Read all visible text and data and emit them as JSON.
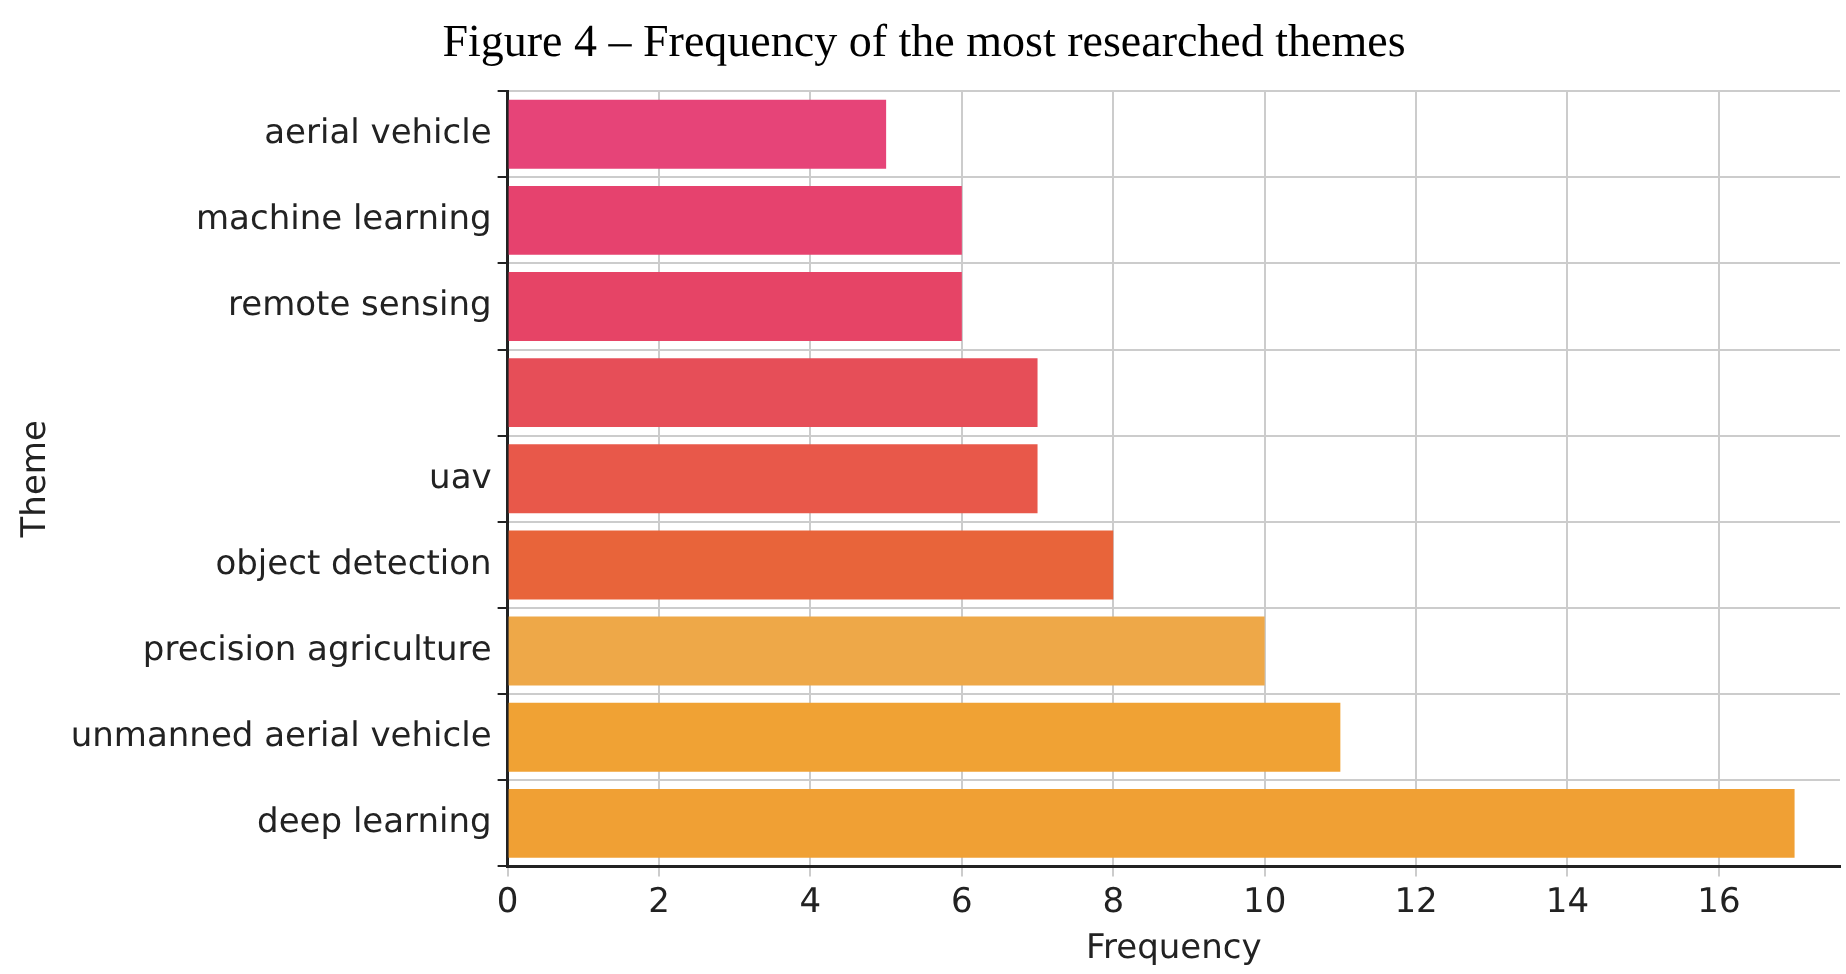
{
  "chart_data": {
    "type": "bar",
    "orientation": "horizontal",
    "title": "Figure 4 – Frequency of the most researched themes",
    "xlabel": "Frequency",
    "ylabel": "Theme",
    "categories": [
      "aerial vehicle",
      "machine learning",
      "remote sensing",
      null,
      "uav",
      "object detection",
      "precision agriculture",
      "unmanned aerial vehicle",
      "deep learning"
    ],
    "values": [
      5,
      6,
      6,
      7,
      7,
      8,
      10,
      11,
      17
    ],
    "colors": [
      "#e64478",
      "#e6426e",
      "#e64466",
      "#e64e58",
      "#e8584a",
      "#e8643a",
      "#eea848",
      "#f0a234",
      "#f0a034"
    ],
    "xlim": [
      0,
      17.6
    ],
    "xticks": [
      0,
      2,
      4,
      6,
      8,
      10,
      12,
      14,
      16
    ],
    "grid": true,
    "legend": false
  }
}
